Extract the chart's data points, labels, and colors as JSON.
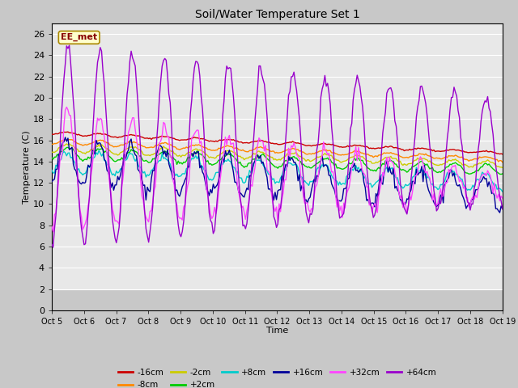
{
  "title": "Soil/Water Temperature Set 1",
  "xlabel": "Time",
  "ylabel": "Temperature (C)",
  "ylim": [
    0,
    27
  ],
  "yticks": [
    0,
    2,
    4,
    6,
    8,
    10,
    12,
    14,
    16,
    18,
    20,
    22,
    24,
    26
  ],
  "x_labels": [
    "Oct 5",
    "Oct 6",
    "Oct 7",
    "Oct 8",
    "Oct 9",
    "Oct 10",
    "Oct 11",
    "Oct 12",
    "Oct 13",
    "Oct 14",
    "Oct 15",
    "Oct 16",
    "Oct 17",
    "Oct 18",
    "Oct 19"
  ],
  "series_colors": {
    "-16cm": "#cc0000",
    "-8cm": "#ff8800",
    "-2cm": "#cccc00",
    "+2cm": "#00cc00",
    "+8cm": "#00cccc",
    "+16cm": "#000099",
    "+32cm": "#ff44ff",
    "+64cm": "#9900cc"
  },
  "watermark_text": "EE_met",
  "watermark_bg": "#ffffcc",
  "watermark_border": "#aa8800",
  "watermark_text_color": "#880000",
  "fig_bg": "#c8c8c8",
  "plot_bg_upper": "#e8e8e8",
  "plot_bg_lower": "#b0b0b0",
  "grid_color": "#ffffff",
  "n_days": 14,
  "n_pts_per_day": 24,
  "figsize": [
    6.4,
    4.8
  ],
  "dpi": 100
}
